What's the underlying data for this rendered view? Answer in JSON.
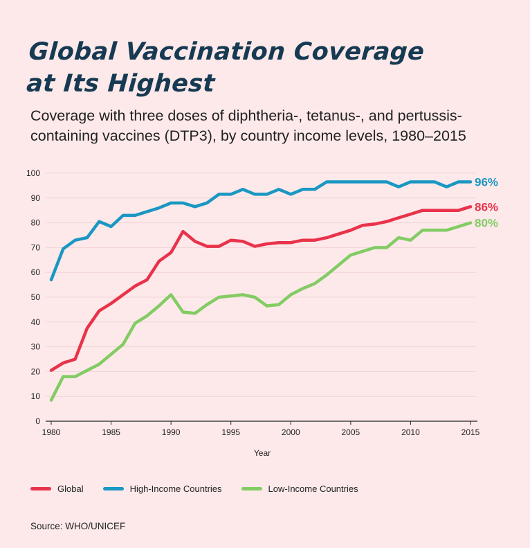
{
  "title_lines": [
    "Global Vaccination Coverage",
    "at Its Highest"
  ],
  "subtitle_lines": [
    "Coverage with three doses of diphtheria-, tetanus-, and pertussis-",
    "containing vaccines (DTP3), by country income levels, 1980–2015"
  ],
  "source": "Source: WHO/UNICEF",
  "chart_data": {
    "type": "line",
    "title": "Global Vaccination Coverage at Its Highest",
    "subtitle": "Coverage with three doses of diphtheria-, tetanus-, and pertussis-containing vaccines (DTP3), by country income levels, 1980–2015",
    "xlabel": "Year",
    "ylabel": "",
    "xlim": [
      1980,
      2015
    ],
    "ylim": [
      0,
      100
    ],
    "xticks": [
      1980,
      1985,
      1990,
      1995,
      2000,
      2005,
      2010,
      2015
    ],
    "yticks": [
      0,
      10,
      20,
      30,
      40,
      50,
      60,
      70,
      80,
      90,
      100
    ],
    "grid": "horizontal",
    "legend_position": "bottom",
    "x": [
      1980,
      1981,
      1982,
      1983,
      1984,
      1985,
      1986,
      1987,
      1988,
      1989,
      1990,
      1991,
      1992,
      1993,
      1994,
      1995,
      1996,
      1997,
      1998,
      1999,
      2000,
      2001,
      2002,
      2003,
      2004,
      2005,
      2006,
      2007,
      2008,
      2009,
      2010,
      2011,
      2012,
      2013,
      2014,
      2015
    ],
    "series": [
      {
        "name": "Global",
        "color": "#e8334a",
        "end_label": "86%",
        "values": [
          20.5,
          23.5,
          25,
          37.5,
          44.5,
          47.5,
          51,
          54.5,
          57,
          64.5,
          68,
          76.5,
          72.5,
          70.5,
          70.5,
          73,
          72.5,
          70.5,
          71.5,
          72,
          72,
          73,
          73,
          74,
          75.5,
          77,
          79,
          79.5,
          80.5,
          82,
          83.5,
          85,
          85,
          85,
          85,
          86.5
        ]
      },
      {
        "name": "High-Income Countries",
        "color": "#1a97c2",
        "end_label": "96%",
        "values": [
          57,
          69.5,
          73,
          74,
          80.5,
          78.5,
          83,
          83,
          84.5,
          86,
          88,
          88,
          86.5,
          88,
          91.5,
          91.5,
          93.5,
          91.5,
          91.5,
          93.5,
          91.5,
          93.5,
          93.5,
          96.5,
          96.5,
          96.5,
          96.5,
          96.5,
          96.5,
          94.5,
          96.5,
          96.5,
          96.5,
          94.5,
          96.5,
          96.5
        ]
      },
      {
        "name": "Low-Income Countries",
        "color": "#82cc63",
        "end_label": "80%",
        "values": [
          8.5,
          18,
          18,
          20.5,
          23,
          27,
          31,
          39.5,
          42.5,
          46.5,
          51,
          44,
          43.5,
          47,
          50,
          50.5,
          51,
          50,
          46.5,
          47,
          51,
          53.5,
          55.5,
          59,
          63,
          67,
          68.5,
          70,
          70,
          74,
          73,
          77,
          77,
          77,
          78.5,
          80
        ]
      }
    ]
  }
}
